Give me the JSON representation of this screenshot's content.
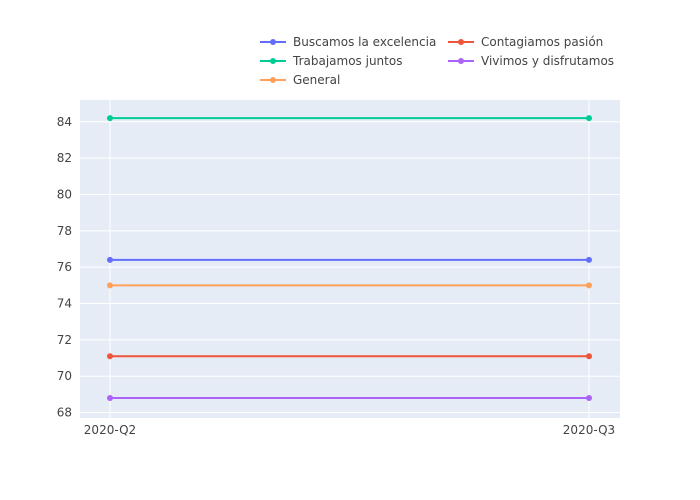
{
  "chart_data": {
    "type": "line",
    "x": [
      "2020-Q2",
      "2020-Q3"
    ],
    "series": [
      {
        "name": "Buscamos la excelencia",
        "values": [
          76.4,
          76.4
        ],
        "color": "#636efa"
      },
      {
        "name": "Contagiamos pasión",
        "values": [
          71.1,
          71.1
        ],
        "color": "#ef553b"
      },
      {
        "name": "Trabajamos juntos",
        "values": [
          84.2,
          84.2
        ],
        "color": "#00cc96"
      },
      {
        "name": "Vivimos y disfrutamos",
        "values": [
          68.8,
          68.8
        ],
        "color": "#ab63fa"
      },
      {
        "name": "General",
        "values": [
          75.0,
          75.0
        ],
        "color": "#ffa15a"
      }
    ],
    "y_ticks": [
      68,
      70,
      72,
      74,
      76,
      78,
      80,
      82,
      84
    ],
    "ylim": [
      67.7,
      85.2
    ],
    "grid": true,
    "legend_position": "top-right",
    "plot_background": "#e5ecf6"
  }
}
